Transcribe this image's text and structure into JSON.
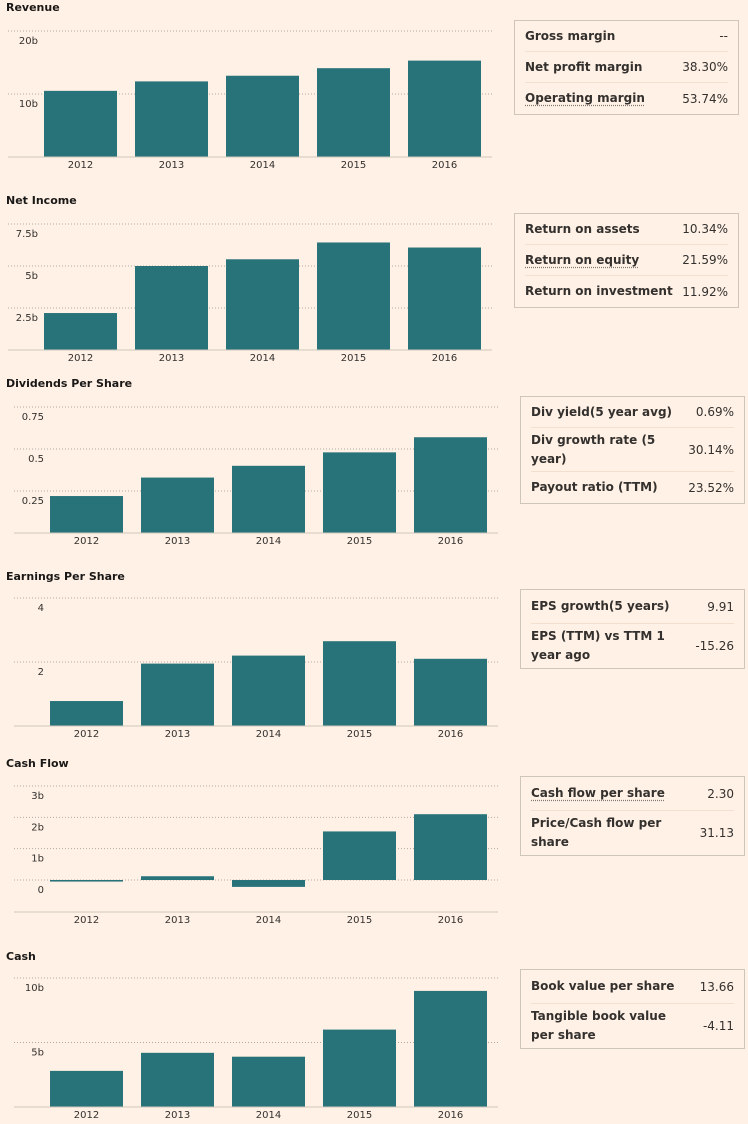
{
  "colors": {
    "bar": "#28737a",
    "background": "#fff1e5",
    "axis": "#cec6b9",
    "grid": "#b0aaa3"
  },
  "sections": [
    {
      "id": "revenue",
      "title": "Revenue",
      "chart_data": {
        "type": "bar",
        "title": "Revenue",
        "categories": [
          "2012",
          "2013",
          "2014",
          "2015",
          "2016"
        ],
        "values": [
          10.5,
          12,
          12.9,
          14.1,
          15.3
        ],
        "ylim": [
          0,
          20
        ],
        "yticks": [
          {
            "v": 20,
            "label": "20b"
          },
          {
            "v": 10,
            "label": "10b"
          }
        ],
        "unit": "b"
      },
      "metrics": [
        {
          "label": "Gross margin",
          "value": "--",
          "dotted": false
        },
        {
          "label": "Net profit margin",
          "value": "38.30%",
          "dotted": false
        },
        {
          "label": "Operating margin",
          "value": "53.74%",
          "dotted": true
        }
      ]
    },
    {
      "id": "net-income",
      "title": "Net Income",
      "chart_data": {
        "type": "bar",
        "title": "Net Income",
        "categories": [
          "2012",
          "2013",
          "2014",
          "2015",
          "2016"
        ],
        "values": [
          2.2,
          5.0,
          5.4,
          6.4,
          6.1
        ],
        "ylim": [
          0,
          7.5
        ],
        "yticks": [
          {
            "v": 7.5,
            "label": "7.5b"
          },
          {
            "v": 5,
            "label": "5b"
          },
          {
            "v": 2.5,
            "label": "2.5b"
          }
        ],
        "unit": "b"
      },
      "metrics": [
        {
          "label": "Return on assets",
          "value": "10.34%",
          "dotted": false
        },
        {
          "label": "Return on equity",
          "value": "21.59%",
          "dotted": true
        },
        {
          "label": "Return on investment",
          "value": "11.92%",
          "dotted": false
        }
      ]
    },
    {
      "id": "dividends-per-share",
      "title": "Dividends Per Share",
      "chart_data": {
        "type": "bar",
        "title": "Dividends Per Share",
        "categories": [
          "2012",
          "2013",
          "2014",
          "2015",
          "2016"
        ],
        "values": [
          0.22,
          0.33,
          0.4,
          0.48,
          0.57
        ],
        "ylim": [
          0,
          0.75
        ],
        "yticks": [
          {
            "v": 0.75,
            "label": "0.75"
          },
          {
            "v": 0.5,
            "label": "0.5"
          },
          {
            "v": 0.25,
            "label": "0.25"
          }
        ]
      },
      "metrics": [
        {
          "label": "Div yield(5 year avg)",
          "value": "0.69%",
          "dotted": false
        },
        {
          "label": "Div growth rate (5 year)",
          "value": "30.14%",
          "dotted": false
        },
        {
          "label": "Payout ratio (TTM)",
          "value": "23.52%",
          "dotted": false
        }
      ]
    },
    {
      "id": "earnings-per-share",
      "title": "Earnings Per Share",
      "chart_data": {
        "type": "bar",
        "title": "Earnings Per Share",
        "categories": [
          "2012",
          "2013",
          "2014",
          "2015",
          "2016"
        ],
        "values": [
          0.78,
          1.95,
          2.2,
          2.65,
          2.1
        ],
        "ylim": [
          0,
          4
        ],
        "yticks": [
          {
            "v": 4,
            "label": "4"
          },
          {
            "v": 2,
            "label": "2"
          }
        ]
      },
      "metrics": [
        {
          "label": "EPS growth(5 years)",
          "value": "9.91",
          "dotted": false
        },
        {
          "label": "EPS (TTM) vs TTM 1 year ago",
          "value": "-15.26",
          "dotted": false
        }
      ]
    },
    {
      "id": "cash-flow",
      "title": "Cash Flow",
      "chart_data": {
        "type": "bar",
        "title": "Cash Flow",
        "categories": [
          "2012",
          "2013",
          "2014",
          "2015",
          "2016"
        ],
        "values": [
          -0.05,
          0.12,
          -0.22,
          1.55,
          2.1
        ],
        "ylim": [
          -0.25,
          3
        ],
        "yticks": [
          {
            "v": 3,
            "label": "3b"
          },
          {
            "v": 2,
            "label": "2b"
          },
          {
            "v": 1,
            "label": "1b"
          },
          {
            "v": 0,
            "label": "0"
          }
        ],
        "unit": "b"
      },
      "metrics": [
        {
          "label": "Cash flow per share",
          "value": "2.30",
          "dotted": true
        },
        {
          "label": "Price/Cash flow per share",
          "value": "31.13",
          "dotted": false
        }
      ]
    },
    {
      "id": "cash",
      "title": "Cash",
      "chart_data": {
        "type": "bar",
        "title": "Cash",
        "categories": [
          "2012",
          "2013",
          "2014",
          "2015",
          "2016"
        ],
        "values": [
          2.8,
          4.2,
          3.9,
          6.0,
          9.0
        ],
        "ylim": [
          0,
          10
        ],
        "yticks": [
          {
            "v": 10,
            "label": "10b"
          },
          {
            "v": 5,
            "label": "5b"
          }
        ],
        "unit": "b"
      },
      "metrics": [
        {
          "label": "Book value per share",
          "value": "13.66",
          "dotted": false
        },
        {
          "label": "Tangible book value per share",
          "value": "-4.11",
          "dotted": false
        }
      ]
    }
  ]
}
